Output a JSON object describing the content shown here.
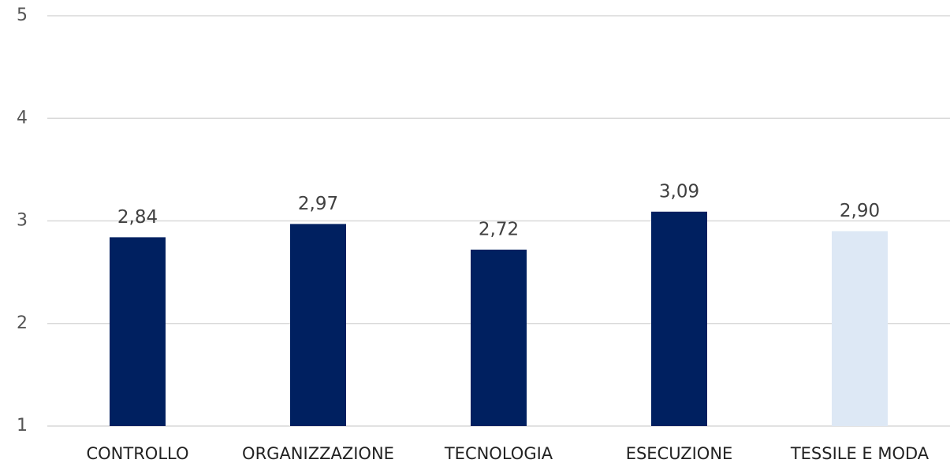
{
  "chart_data": {
    "type": "bar",
    "categories": [
      "CONTROLLO",
      "ORGANIZZAZIONE",
      "TECNOLOGIA",
      "ESECUZIONE",
      "TESSILE E MODA"
    ],
    "values": [
      2.84,
      2.97,
      2.72,
      3.09,
      2.9
    ],
    "value_labels": [
      "2,84",
      "2,97",
      "2,72",
      "3,09",
      "2,90"
    ],
    "colors": [
      "#002060",
      "#002060",
      "#002060",
      "#002060",
      "#dde8f5"
    ],
    "ylim": [
      1,
      5
    ],
    "yticks": [
      1,
      2,
      3,
      4,
      5
    ],
    "grid": true
  }
}
